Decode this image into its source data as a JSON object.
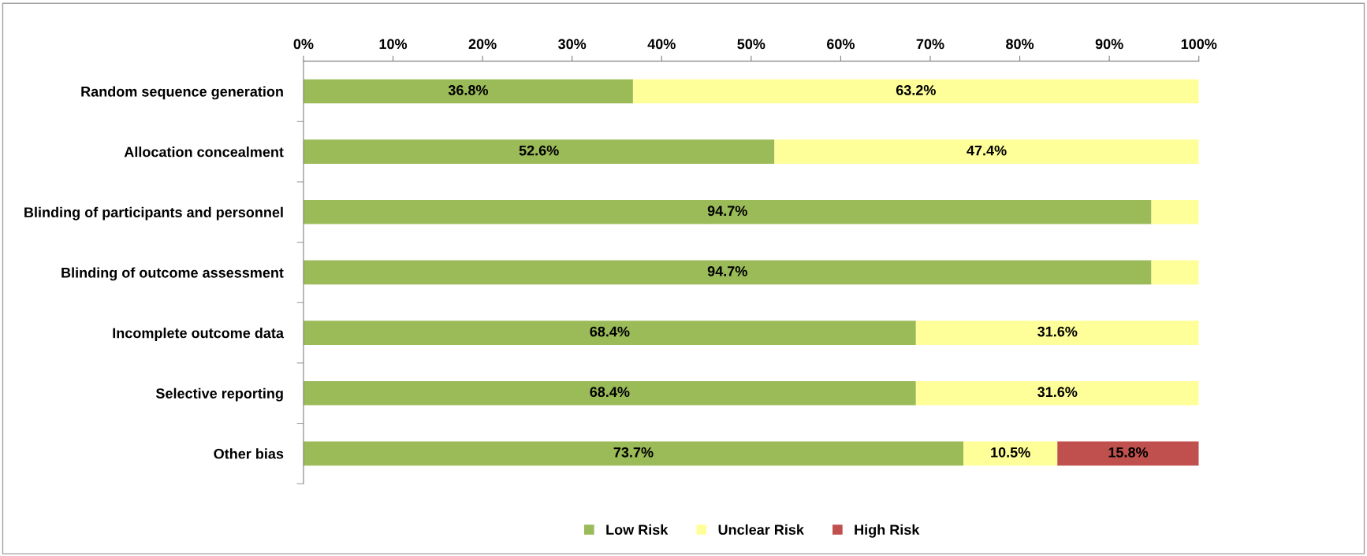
{
  "chart_data": {
    "type": "bar",
    "orientation": "horizontal",
    "stacked": true,
    "categories": [
      "Random sequence generation",
      "Allocation concealment",
      "Blinding of participants and personnel",
      "Blinding of outcome assessment",
      "Incomplete outcome data",
      "Selective reporting",
      "Other bias"
    ],
    "series": [
      {
        "name": "Low Risk",
        "color": "#9bbb59",
        "values": [
          36.8,
          52.6,
          94.7,
          94.7,
          68.4,
          68.4,
          73.7
        ],
        "value_labels": [
          "36.8%",
          "52.6%",
          "94.7%",
          "94.7%",
          "68.4%",
          "68.4%",
          "73.7%"
        ]
      },
      {
        "name": "Unclear Risk",
        "color": "#ffff99",
        "values": [
          63.2,
          47.4,
          5.3,
          5.3,
          31.6,
          31.6,
          10.5
        ],
        "value_labels": [
          "63.2%",
          "47.4%",
          null,
          null,
          "31.6%",
          "31.6%",
          "10.5%"
        ]
      },
      {
        "name": "High Risk",
        "color": "#c0504d",
        "values": [
          0,
          0,
          0,
          0,
          0,
          0,
          15.8
        ],
        "value_labels": [
          null,
          null,
          null,
          null,
          null,
          null,
          "15.8%"
        ]
      }
    ],
    "xlim": [
      0,
      100
    ],
    "xticks": [
      {
        "value": 0,
        "label": "0%"
      },
      {
        "value": 10,
        "label": "10%"
      },
      {
        "value": 20,
        "label": "20%"
      },
      {
        "value": 30,
        "label": "30%"
      },
      {
        "value": 40,
        "label": "40%"
      },
      {
        "value": 50,
        "label": "50%"
      },
      {
        "value": 60,
        "label": "60%"
      },
      {
        "value": 70,
        "label": "70%"
      },
      {
        "value": 80,
        "label": "80%"
      },
      {
        "value": 90,
        "label": "90%"
      },
      {
        "value": 100,
        "label": "100%"
      }
    ],
    "grid": false,
    "legend": "bottom"
  }
}
